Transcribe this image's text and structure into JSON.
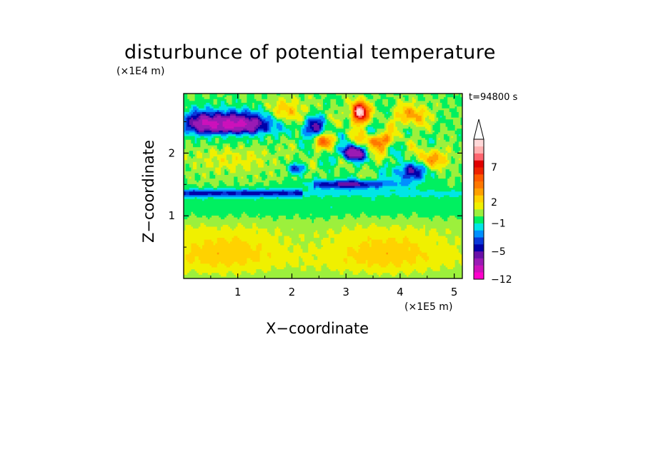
{
  "chart_data": {
    "type": "heatmap",
    "title": "disturbunce of potential temperature",
    "xlabel": "X−coordinate",
    "ylabel": "Z−coordinate",
    "x_unit": "(×1E5 m)",
    "y_unit": "(×1E4 m)",
    "annotation": "t=94800 s",
    "xlim": [
      0,
      5.15
    ],
    "ylim": [
      0,
      2.95
    ],
    "x_ticks": [
      1,
      2,
      3,
      4,
      5
    ],
    "y_ticks": [
      1,
      2
    ],
    "x_tick_labels": [
      "1",
      "2",
      "3",
      "4",
      "5"
    ],
    "y_tick_labels": [
      "1",
      "2"
    ],
    "colorbar": {
      "levels": [
        -12,
        -10,
        -8,
        -6,
        -5,
        -4,
        -3,
        -2,
        -1,
        0,
        1,
        2,
        3,
        4,
        5,
        6,
        7,
        8,
        9,
        10,
        11
      ],
      "colors": [
        "#ff00cc",
        "#cc11bb",
        "#9a1ab4",
        "#6a10a8",
        "#0000aa",
        "#0a38d8",
        "#0090ff",
        "#00e6e6",
        "#00f060",
        "#9cf03c",
        "#f0f000",
        "#ffd200",
        "#ffa000",
        "#ff7800",
        "#ff5a00",
        "#ee2200",
        "#e00000",
        "#ff6670",
        "#ffb0b0",
        "#ffd8d8"
      ],
      "tick_values": [
        7,
        2,
        -1,
        -5,
        -12
      ],
      "tick_labels": [
        "7",
        "2",
        "−1",
        "−5",
        "−12"
      ],
      "extend": "max"
    },
    "field_summary": [
      {
        "x": 0.9,
        "z": 2.45,
        "value": -8,
        "note": "strong negative anomaly, upper left"
      },
      {
        "x": 3.2,
        "z": 2.65,
        "value": 10,
        "note": "strong positive anomaly, upper center"
      },
      {
        "x": 3.1,
        "z": 2.0,
        "value": -8,
        "note": "negative cell, upper center"
      },
      {
        "x": 3.0,
        "z": 1.5,
        "value": -5,
        "note": "negative band"
      },
      {
        "x": 1.0,
        "z": 1.35,
        "value": -4,
        "note": "negative band, left"
      },
      {
        "x": 2.5,
        "z": 1.0,
        "value": 0,
        "note": "near-zero layer"
      },
      {
        "x": 2.5,
        "z": 0.45,
        "value": 3,
        "note": "positive low-level layer"
      }
    ]
  }
}
